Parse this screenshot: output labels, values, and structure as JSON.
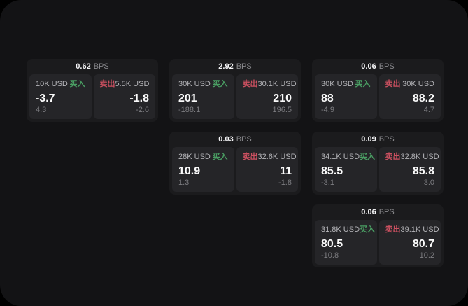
{
  "labels": {
    "bps_unit": "BPS",
    "buy": "买入",
    "sell": "卖出"
  },
  "colors": {
    "buy": "#4a9e63",
    "sell": "#cb5060",
    "panel_bg": "#131315",
    "card_bg": "#1b1b1d",
    "side_bg": "#252528"
  },
  "cards": [
    {
      "row": 1,
      "col": 1,
      "bps": "0.62",
      "buy": {
        "amount": "10K USD",
        "value": "-3.7",
        "sub": "4.3"
      },
      "sell": {
        "amount": "5.5K USD",
        "value": "-1.8",
        "sub": "-2.6"
      }
    },
    {
      "row": 1,
      "col": 2,
      "bps": "2.92",
      "buy": {
        "amount": "30K USD",
        "value": "201",
        "sub": "-188.1"
      },
      "sell": {
        "amount": "30.1K USD",
        "value": "210",
        "sub": "196.5"
      }
    },
    {
      "row": 1,
      "col": 3,
      "bps": "0.06",
      "buy": {
        "amount": "30K USD",
        "value": "88",
        "sub": "-4.9"
      },
      "sell": {
        "amount": "30K USD",
        "value": "88.2",
        "sub": "4.7"
      }
    },
    {
      "row": 2,
      "col": 2,
      "bps": "0.03",
      "buy": {
        "amount": "28K USD",
        "value": "10.9",
        "sub": "1.3"
      },
      "sell": {
        "amount": "32.6K USD",
        "value": "11",
        "sub": "-1.8"
      }
    },
    {
      "row": 2,
      "col": 3,
      "bps": "0.09",
      "buy": {
        "amount": "34.1K USD",
        "value": "85.5",
        "sub": "-3.1"
      },
      "sell": {
        "amount": "32.8K USD",
        "value": "85.8",
        "sub": "3.0"
      }
    },
    {
      "row": 3,
      "col": 3,
      "bps": "0.06",
      "buy": {
        "amount": "31.8K USD",
        "value": "80.5",
        "sub": "-10.8"
      },
      "sell": {
        "amount": "39.1K USD",
        "value": "80.7",
        "sub": "10.2"
      }
    }
  ]
}
